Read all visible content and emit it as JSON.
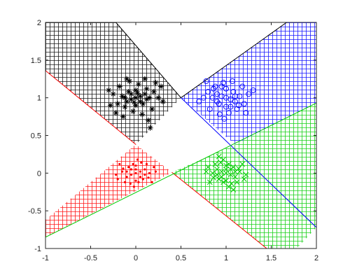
{
  "chart_data": {
    "type": "scatter",
    "xlim": [
      -1,
      2
    ],
    "ylim": [
      -1,
      2
    ],
    "grid": false,
    "xticks": [
      {
        "value": -1,
        "label": "-1"
      },
      {
        "value": -0.5,
        "label": "-0.5"
      },
      {
        "value": 0,
        "label": "0"
      },
      {
        "value": 0.5,
        "label": "0.5"
      },
      {
        "value": 1,
        "label": "1"
      },
      {
        "value": 1.5,
        "label": "1.5"
      },
      {
        "value": 2,
        "label": "2"
      }
    ],
    "yticks": [
      {
        "value": -1,
        "label": "-1"
      },
      {
        "value": -0.5,
        "label": "-0.5"
      },
      {
        "value": 0,
        "label": "0"
      },
      {
        "value": 0.5,
        "label": "0.5"
      },
      {
        "value": 1,
        "label": "1"
      },
      {
        "value": 1.5,
        "label": "1.5"
      },
      {
        "value": 2,
        "label": "2"
      }
    ],
    "series": [
      {
        "color": "#000000",
        "marker": "asterisk",
        "center": [
          0.0,
          1.0
        ],
        "points": [
          [
            0.0,
            1.0
          ],
          [
            0.05,
            1.02
          ],
          [
            -0.05,
            0.98
          ],
          [
            0.1,
            1.05
          ],
          [
            -0.1,
            0.95
          ],
          [
            0.15,
            1.0
          ],
          [
            -0.15,
            1.02
          ],
          [
            0.0,
            1.1
          ],
          [
            0.0,
            0.9
          ],
          [
            0.08,
            0.92
          ],
          [
            -0.08,
            1.08
          ],
          [
            0.2,
            1.08
          ],
          [
            -0.2,
            0.92
          ],
          [
            0.12,
            1.12
          ],
          [
            -0.12,
            0.88
          ],
          [
            0.25,
            1.0
          ],
          [
            -0.25,
            1.05
          ],
          [
            0.03,
            1.18
          ],
          [
            -0.03,
            0.82
          ],
          [
            0.18,
            0.85
          ],
          [
            -0.18,
            1.15
          ],
          [
            0.3,
            0.95
          ],
          [
            -0.3,
            1.1
          ],
          [
            0.07,
            0.78
          ],
          [
            -0.07,
            1.22
          ],
          [
            0.22,
            1.2
          ],
          [
            -0.22,
            0.8
          ],
          [
            0.14,
            0.7
          ],
          [
            0.1,
            1.25
          ],
          [
            -0.1,
            1.25
          ],
          [
            0.05,
            0.95
          ],
          [
            -0.05,
            1.05
          ],
          [
            0.12,
            0.98
          ],
          [
            -0.12,
            1.0
          ],
          [
            0.02,
            1.06
          ],
          [
            -0.14,
            0.75
          ],
          [
            0.28,
            1.15
          ],
          [
            -0.28,
            0.9
          ],
          [
            0.16,
            0.6
          ],
          [
            -0.02,
            0.94
          ]
        ]
      },
      {
        "color": "#0000ff",
        "marker": "circle",
        "center": [
          1.0,
          1.0
        ],
        "points": [
          [
            1.0,
            1.0
          ],
          [
            0.95,
            1.02
          ],
          [
            1.05,
            0.98
          ],
          [
            0.9,
            1.05
          ],
          [
            1.1,
            0.95
          ],
          [
            0.85,
            1.0
          ],
          [
            1.15,
            1.02
          ],
          [
            1.0,
            1.12
          ],
          [
            1.0,
            0.88
          ],
          [
            0.92,
            0.92
          ],
          [
            1.08,
            1.08
          ],
          [
            0.8,
            1.08
          ],
          [
            1.2,
            0.92
          ],
          [
            0.88,
            1.15
          ],
          [
            1.12,
            0.85
          ],
          [
            0.75,
            1.0
          ],
          [
            1.25,
            1.05
          ],
          [
            0.97,
            1.2
          ],
          [
            1.03,
            0.8
          ],
          [
            0.82,
            0.85
          ],
          [
            1.18,
            1.15
          ],
          [
            0.7,
            0.95
          ],
          [
            1.3,
            1.1
          ],
          [
            0.93,
            0.78
          ],
          [
            1.07,
            1.22
          ],
          [
            0.78,
            1.22
          ],
          [
            1.22,
            0.8
          ],
          [
            0.98,
            0.72
          ],
          [
            0.9,
            0.95
          ],
          [
            1.1,
            1.02
          ],
          [
            0.95,
            1.15
          ],
          [
            1.05,
            0.88
          ],
          [
            0.86,
            1.12
          ],
          [
            1.14,
            0.9
          ]
        ]
      },
      {
        "color": "#ff0000",
        "marker": "dot",
        "center": [
          0.0,
          0.0
        ],
        "points": [
          [
            0.0,
            0.0
          ],
          [
            0.05,
            0.02
          ],
          [
            -0.05,
            -0.02
          ],
          [
            0.1,
            0.05
          ],
          [
            -0.1,
            -0.05
          ],
          [
            0.15,
            0.0
          ],
          [
            -0.15,
            0.02
          ],
          [
            0.0,
            0.1
          ],
          [
            0.0,
            -0.1
          ],
          [
            0.08,
            -0.08
          ],
          [
            -0.08,
            0.08
          ],
          [
            0.2,
            0.08
          ],
          [
            -0.2,
            -0.08
          ],
          [
            0.12,
            0.12
          ],
          [
            -0.12,
            -0.12
          ],
          [
            0.02,
            0.18
          ],
          [
            -0.02,
            -0.18
          ],
          [
            0.18,
            -0.12
          ],
          [
            -0.18,
            0.12
          ],
          [
            0.05,
            -0.05
          ],
          [
            -0.05,
            0.05
          ],
          [
            0.1,
            -0.02
          ],
          [
            -0.1,
            0.02
          ],
          [
            0.06,
            0.14
          ],
          [
            -0.06,
            -0.14
          ],
          [
            0.22,
            0.02
          ],
          [
            -0.22,
            -0.02
          ],
          [
            0.14,
            -0.06
          ],
          [
            -0.14,
            0.06
          ],
          [
            0.0,
            0.05
          ],
          [
            0.03,
            -0.12
          ],
          [
            -0.03,
            0.12
          ]
        ]
      },
      {
        "color": "#00cc00",
        "marker": "cross",
        "center": [
          1.0,
          0.0
        ],
        "points": [
          [
            1.0,
            0.0
          ],
          [
            0.95,
            0.02
          ],
          [
            1.05,
            -0.02
          ],
          [
            0.9,
            0.05
          ],
          [
            1.1,
            -0.05
          ],
          [
            0.85,
            0.0
          ],
          [
            1.15,
            0.02
          ],
          [
            1.0,
            0.1
          ],
          [
            1.0,
            -0.1
          ],
          [
            0.92,
            -0.08
          ],
          [
            1.08,
            0.08
          ],
          [
            0.8,
            0.08
          ],
          [
            1.2,
            -0.08
          ],
          [
            0.88,
            0.12
          ],
          [
            1.12,
            -0.12
          ],
          [
            0.97,
            0.18
          ],
          [
            1.03,
            -0.18
          ],
          [
            0.82,
            -0.12
          ],
          [
            1.18,
            0.12
          ],
          [
            0.95,
            -0.05
          ],
          [
            1.05,
            0.05
          ],
          [
            0.9,
            -0.02
          ],
          [
            1.1,
            0.02
          ],
          [
            0.94,
            0.14
          ],
          [
            1.06,
            -0.14
          ],
          [
            0.78,
            0.02
          ],
          [
            1.22,
            -0.02
          ],
          [
            0.86,
            -0.06
          ],
          [
            1.14,
            0.06
          ],
          [
            1.0,
            0.05
          ],
          [
            0.97,
            -0.12
          ],
          [
            1.03,
            0.12
          ],
          [
            0.92,
            0.22
          ],
          [
            1.08,
            -0.22
          ]
        ]
      }
    ],
    "regions": [
      {
        "color": "#000000",
        "polygon": [
          [
            -1,
            2
          ],
          [
            -0.22,
            2
          ],
          [
            0.5,
            1.0
          ],
          [
            0.0,
            0.38
          ],
          [
            -1,
            1.36
          ]
        ]
      },
      {
        "color": "#0000ff",
        "polygon": [
          [
            0.5,
            1.0
          ],
          [
            1.1,
            0.38
          ],
          [
            2,
            0.93
          ],
          [
            2,
            2
          ],
          [
            1.67,
            2
          ]
        ]
      },
      {
        "color": "#ff0000",
        "polygon": [
          [
            -1,
            -0.62
          ],
          [
            -1,
            -0.85
          ],
          [
            0.4,
            0.01
          ],
          [
            0.0,
            0.38
          ]
        ]
      },
      {
        "color": "#00cc00",
        "polygon": [
          [
            0.4,
            0.01
          ],
          [
            1.1,
            0.38
          ],
          [
            2,
            0.93
          ],
          [
            2,
            -0.72
          ],
          [
            1.78,
            -1
          ],
          [
            1.45,
            -1
          ]
        ]
      }
    ],
    "boundaries": [
      {
        "color": "#000000",
        "line": [
          [
            -0.22,
            2
          ],
          [
            0.5,
            1.0
          ]
        ]
      },
      {
        "color": "#000000",
        "line": [
          [
            0.5,
            1.0
          ],
          [
            1.67,
            2
          ]
        ]
      },
      {
        "color": "#ff0000",
        "line": [
          [
            -1,
            1.36
          ],
          [
            0.0,
            0.38
          ]
        ]
      },
      {
        "color": "#ff0000",
        "line": [
          [
            0.4,
            0.01
          ],
          [
            1.45,
            -1
          ]
        ]
      },
      {
        "color": "#0000ff",
        "line": [
          [
            0.5,
            1.0
          ],
          [
            2,
            -0.72
          ]
        ]
      },
      {
        "color": "#00cc00",
        "line": [
          [
            -1,
            -0.85
          ],
          [
            2,
            0.93
          ]
        ]
      }
    ]
  }
}
